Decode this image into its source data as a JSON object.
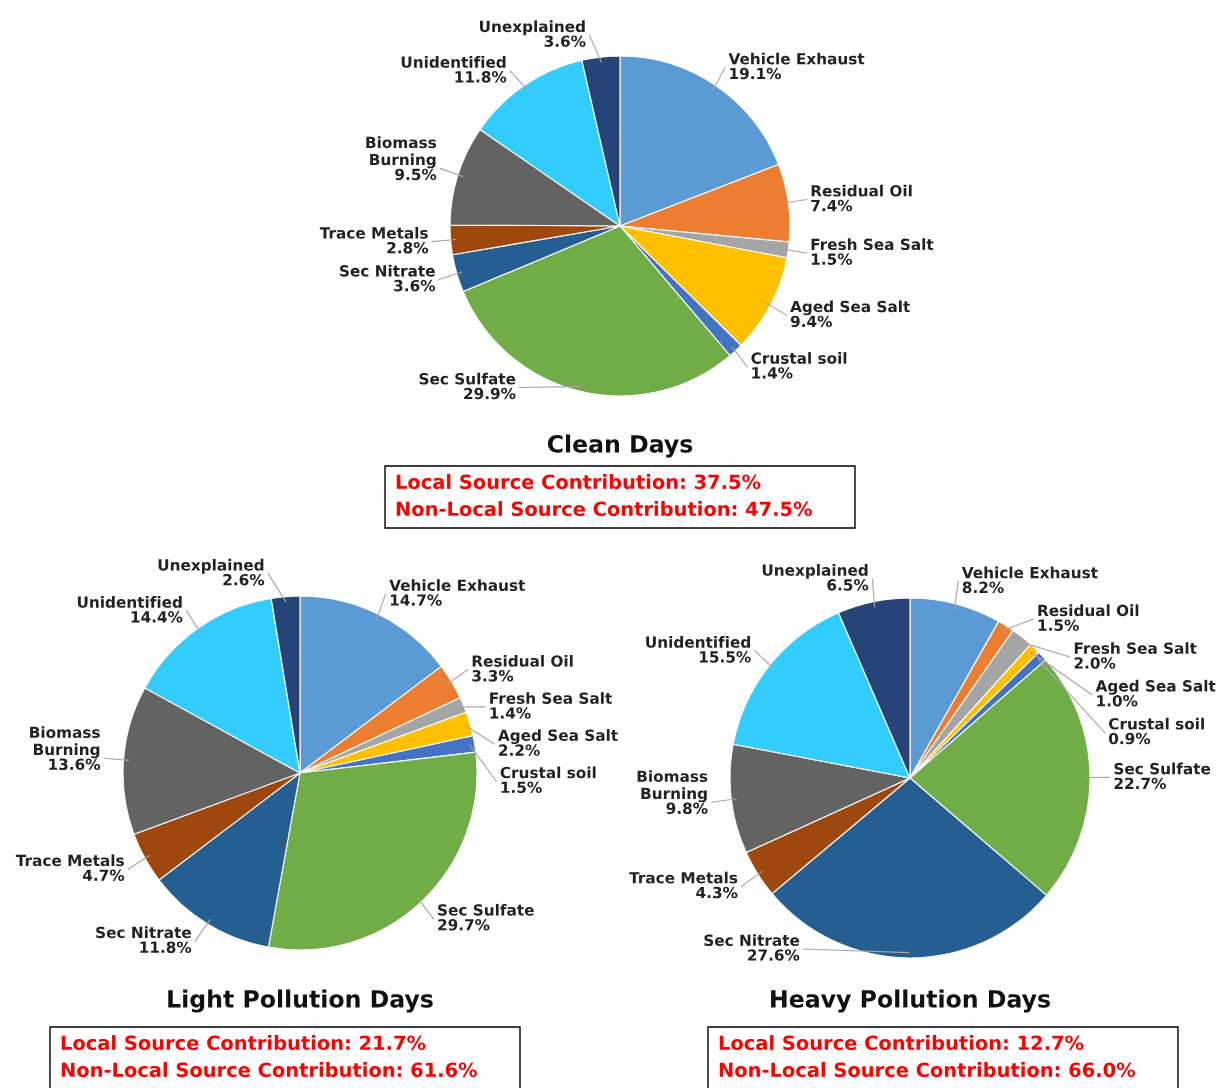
{
  "chart_data": [
    {
      "type": "pie",
      "title": "Clean Days",
      "categories": [
        "Vehicle Exhaust",
        "Residual Oil",
        "Fresh Sea Salt",
        "Aged Sea Salt",
        "Crustal soil",
        "Sec Sulfate",
        "Sec Nitrate",
        "Trace Metals",
        "Biomass Burning",
        "Unidentified",
        "Unexplained"
      ],
      "values": [
        19.1,
        7.4,
        1.5,
        9.4,
        1.4,
        29.9,
        3.6,
        2.8,
        9.5,
        11.8,
        3.6
      ],
      "colors": [
        "#5b9bd5",
        "#ed7d31",
        "#a5a5a5",
        "#ffc000",
        "#4472c4",
        "#70ad47",
        "#255e91",
        "#9e480e",
        "#636363",
        "#33ccff",
        "#264478"
      ],
      "data_labels": true,
      "value_labels": [
        "19.1%",
        "7.4%",
        "1.5%",
        "9.4%",
        "1.4%",
        "29.9%",
        "3.6%",
        "2.8%",
        "9.5%",
        "11.8%",
        "3.6%"
      ],
      "annotations": [
        "Local Source Contribution: 37.5%",
        "Non-Local Source Contribution: 47.5%"
      ]
    },
    {
      "type": "pie",
      "title": "Light Pollution Days",
      "categories": [
        "Vehicle Exhaust",
        "Residual Oil",
        "Fresh Sea Salt",
        "Aged Sea Salt",
        "Crustal soil",
        "Sec Sulfate",
        "Sec Nitrate",
        "Trace Metals",
        "Biomass Burning",
        "Unidentified",
        "Unexplained"
      ],
      "values": [
        14.7,
        3.3,
        1.4,
        2.2,
        1.5,
        29.7,
        11.8,
        4.7,
        13.6,
        14.4,
        2.6
      ],
      "colors": [
        "#5b9bd5",
        "#ed7d31",
        "#a5a5a5",
        "#ffc000",
        "#4472c4",
        "#70ad47",
        "#255e91",
        "#9e480e",
        "#636363",
        "#33ccff",
        "#264478"
      ],
      "data_labels": true,
      "value_labels": [
        "14.7%",
        "3.3%",
        "1.4%",
        "2.2%",
        "1.5%",
        "29.7%",
        "11.8%",
        "4.7%",
        "13.6%",
        "14.4%",
        "2.6%"
      ],
      "annotations": [
        "Local Source Contribution: 21.7%",
        "Non-Local Source Contribution: 61.6%"
      ]
    },
    {
      "type": "pie",
      "title": "Heavy Pollution Days",
      "categories": [
        "Vehicle Exhaust",
        "Residual Oil",
        "Fresh Sea Salt",
        "Aged Sea Salt",
        "Crustal soil",
        "Sec Sulfate",
        "Sec Nitrate",
        "Trace Metals",
        "Biomass Burning",
        "Unidentified",
        "Unexplained"
      ],
      "values": [
        8.2,
        1.5,
        2.0,
        1.0,
        0.9,
        22.7,
        27.6,
        4.3,
        9.8,
        15.5,
        6.5
      ],
      "colors": [
        "#5b9bd5",
        "#ed7d31",
        "#a5a5a5",
        "#ffc000",
        "#4472c4",
        "#70ad47",
        "#255e91",
        "#9e480e",
        "#636363",
        "#33ccff",
        "#264478"
      ],
      "data_labels": true,
      "value_labels": [
        "8.2%",
        "1.5%",
        "2.0%",
        "1.0%",
        "0.9%",
        "22.7%",
        "27.6%",
        "4.3%",
        "9.8%",
        "15.5%",
        "6.5%"
      ],
      "annotations": [
        "Local Source Contribution: 12.7%",
        "Non-Local Source Contribution: 66.0%"
      ]
    }
  ]
}
